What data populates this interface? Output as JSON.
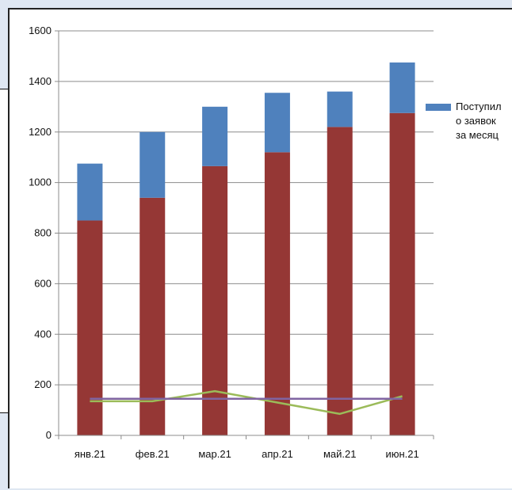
{
  "chart_data": {
    "type": "bar",
    "stacked": true,
    "title": "",
    "xlabel": "",
    "ylabel": "",
    "ylim": [
      0,
      1600
    ],
    "yticks": [
      0,
      200,
      400,
      600,
      800,
      1000,
      1200,
      1400,
      1600
    ],
    "grid": true,
    "legend_position": "right",
    "categories": [
      "янв.21",
      "фев.21",
      "мар.21",
      "апр.21",
      "май.21",
      "июн.21"
    ],
    "series": [
      {
        "kind": "bar",
        "color": "#953735",
        "values": [
          850,
          940,
          1065,
          1120,
          1220,
          1275
        ]
      },
      {
        "kind": "bar",
        "name": [
          "Поступил",
          "о заявок",
          "за месяц"
        ],
        "color": "#4f81bd",
        "values": [
          225,
          260,
          235,
          235,
          140,
          200
        ]
      },
      {
        "kind": "line",
        "color": "#9bbb59",
        "values": [
          135,
          135,
          175,
          130,
          85,
          155
        ]
      },
      {
        "kind": "line",
        "color": "#8064a2",
        "values": [
          145,
          145,
          145,
          145,
          145,
          145
        ]
      }
    ]
  }
}
